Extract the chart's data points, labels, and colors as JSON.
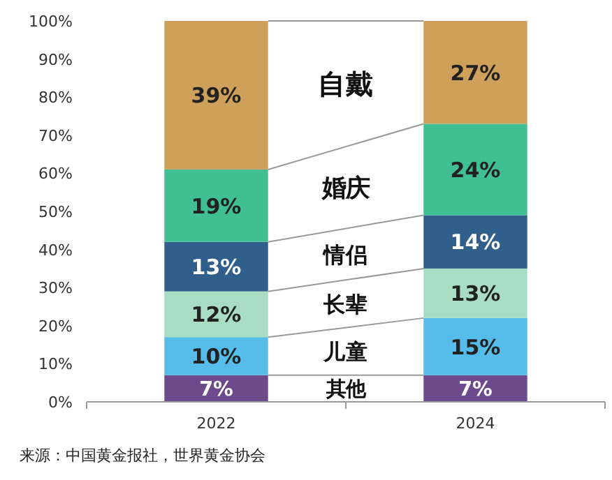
{
  "chart_data": {
    "type": "bar",
    "stacked": true,
    "categories": [
      "2022",
      "2024"
    ],
    "series": [
      {
        "name": "其他",
        "color": "#6c4a8c",
        "values": [
          7,
          7
        ],
        "value_labels": [
          "7%",
          "7%"
        ]
      },
      {
        "name": "儿童",
        "color": "#56bdea",
        "values": [
          10,
          15
        ],
        "value_labels": [
          "10%",
          "15%"
        ]
      },
      {
        "name": "长辈",
        "color": "#a8dcc3",
        "values": [
          12,
          13
        ],
        "value_labels": [
          "12%",
          "13%"
        ]
      },
      {
        "name": "情侣",
        "color": "#2f5f8a",
        "values": [
          13,
          14
        ],
        "value_labels": [
          "13%",
          "14%"
        ]
      },
      {
        "name": "婚庆",
        "color": "#40bf92",
        "values": [
          19,
          24
        ],
        "value_labels": [
          "19%",
          "24%"
        ]
      },
      {
        "name": "自戴",
        "color": "#cfa05a",
        "values": [
          39,
          27
        ],
        "value_labels": [
          "39%",
          "27%"
        ]
      }
    ],
    "ylim": [
      0,
      100
    ],
    "yticks": [
      {
        "value": 0,
        "label": "0%"
      },
      {
        "value": 10,
        "label": "10%"
      },
      {
        "value": 20,
        "label": "20%"
      },
      {
        "value": 30,
        "label": "30%"
      },
      {
        "value": 40,
        "label": "40%"
      },
      {
        "value": 50,
        "label": "50%"
      },
      {
        "value": 60,
        "label": "60%"
      },
      {
        "value": 70,
        "label": "70%"
      },
      {
        "value": 80,
        "label": "80%"
      },
      {
        "value": 90,
        "label": "90%"
      },
      {
        "value": 100,
        "label": "100%"
      }
    ],
    "grid": false,
    "legend": false,
    "annotations": [
      "来源：中国黄金报社，世界黄金协会"
    ]
  }
}
